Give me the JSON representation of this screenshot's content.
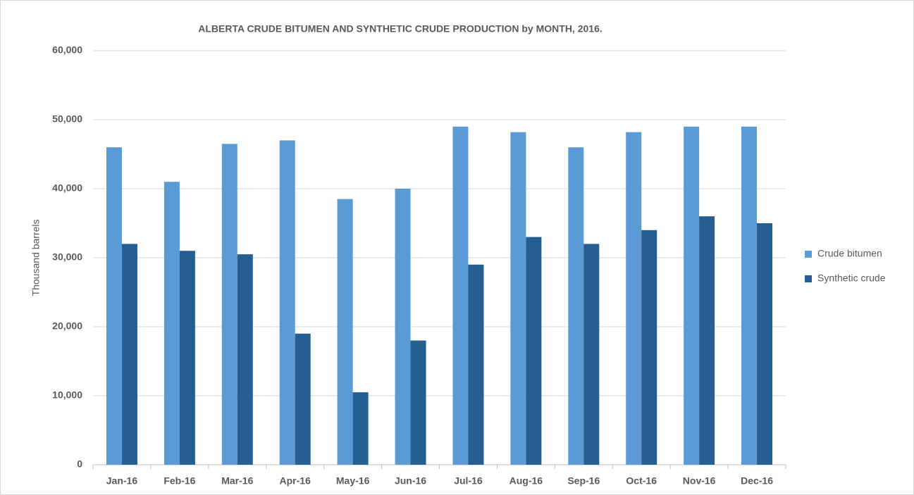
{
  "chart_data": {
    "type": "bar",
    "title": "ALBERTA CRUDE BITUMEN AND SYNTHETIC CRUDE PRODUCTION  by MONTH, 2016.",
    "y_label": "Thousand barrels",
    "categories": [
      "Jan-16",
      "Feb-16",
      "Mar-16",
      "Apr-16",
      "May-16",
      "Jun-16",
      "Jul-16",
      "Aug-16",
      "Sep-16",
      "Oct-16",
      "Nov-16",
      "Dec-16"
    ],
    "series": [
      {
        "name": "Crude bitumen",
        "color": "#5b9bd5",
        "values": [
          46000,
          41000,
          46500,
          47000,
          38500,
          40000,
          49000,
          48200,
          46000,
          48200,
          49000,
          49000
        ]
      },
      {
        "name": "Synthetic crude",
        "color": "#255e91",
        "values": [
          32000,
          31000,
          30500,
          19000,
          10500,
          18000,
          29000,
          33000,
          32000,
          34000,
          36000,
          35000
        ]
      }
    ],
    "ylim": [
      0,
      60000
    ],
    "yticks": [
      0,
      {
        "value": 10000,
        "label": "10,000"
      },
      {
        "value": 20000,
        "label": "20,000"
      },
      {
        "value": 30000,
        "label": "30,000"
      },
      {
        "value": 40000,
        "label": "40,000"
      },
      {
        "value": 50000,
        "label": "50,000"
      },
      {
        "value": 60000,
        "label": "60,000"
      }
    ],
    "grid": true,
    "legend": "right"
  }
}
